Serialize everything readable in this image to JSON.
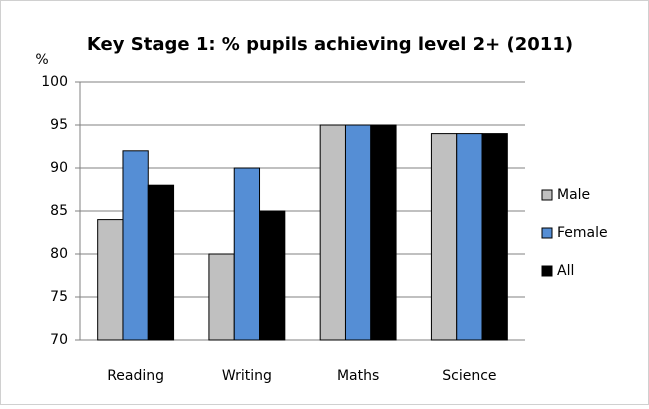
{
  "chart_data": {
    "type": "bar",
    "title": "Key Stage 1: % pupils achieving level 2+ (2011)",
    "y_label": "%",
    "categories": [
      "Reading",
      "Writing",
      "Maths",
      "Science"
    ],
    "series": [
      {
        "name": "Male",
        "color": "#c0c0c0",
        "values": [
          84,
          80,
          95,
          94
        ]
      },
      {
        "name": "Female",
        "color": "#558ed5",
        "values": [
          92,
          90,
          95,
          94
        ]
      },
      {
        "name": "All",
        "color": "#000000",
        "values": [
          88,
          85,
          95,
          94
        ]
      }
    ],
    "ylim": [
      70,
      100
    ],
    "yticks": [
      70,
      75,
      80,
      85,
      90,
      95,
      100
    ],
    "grid": true,
    "legend": "right"
  }
}
